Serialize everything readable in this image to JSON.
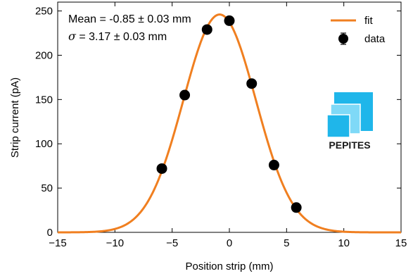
{
  "chart_data": {
    "type": "scatter",
    "xlabel": "Position strip (mm)",
    "ylabel": "Strip current (pA)",
    "xlim": [
      -15,
      15
    ],
    "ylim": [
      0,
      260
    ],
    "xticks": [
      -15,
      -10,
      -5,
      0,
      5,
      10,
      15
    ],
    "xtick_labels": [
      "−15",
      "−10",
      "−5",
      "0",
      "5",
      "10",
      "15"
    ],
    "yticks": [
      0,
      50,
      100,
      150,
      200,
      250
    ],
    "ytick_labels": [
      "0",
      "50",
      "100",
      "150",
      "200",
      "250"
    ],
    "grid": false,
    "legend_position": "top-right",
    "series": [
      {
        "name": "fit",
        "kind": "line",
        "color": "#f07f20",
        "model": "gaussian",
        "amplitude": 246,
        "mean": -0.85,
        "sigma": 3.17
      },
      {
        "name": "data",
        "kind": "points",
        "color": "#000000",
        "x": [
          -5.9,
          -3.9,
          -1.95,
          0.0,
          1.95,
          3.9,
          5.85
        ],
        "y": [
          72,
          155,
          229,
          239,
          168,
          76,
          28
        ]
      }
    ],
    "annotations": [
      {
        "lines": [
          "Mean = -0.85 ± 0.03 mm",
          "= 3.17 ± 0.03 mm"
        ]
      }
    ]
  },
  "annotation": {
    "mean_text": "Mean = -0.85 ± 0.03 mm",
    "sigma_symbol": "σ",
    "sigma_text": " = 3.17 ± 0.03 mm"
  },
  "legend": {
    "fit_label": "fit",
    "data_label": "data"
  },
  "logo": {
    "text": "PEPITES",
    "colors": [
      "#1fb6ea",
      "#6fd7f8",
      "#1fb6ea"
    ]
  }
}
